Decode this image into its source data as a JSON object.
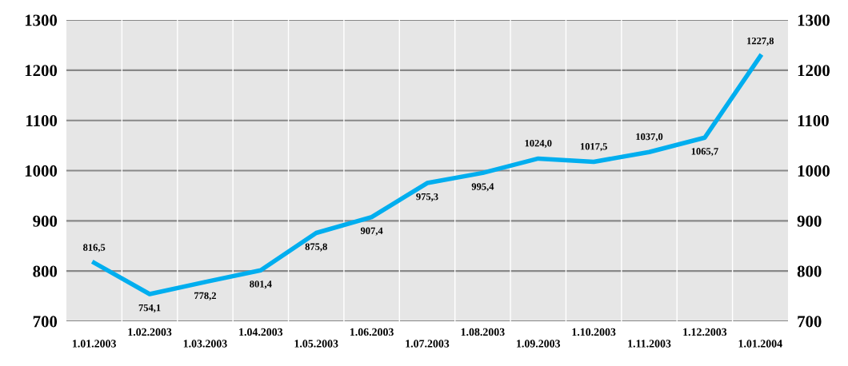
{
  "chart_data": {
    "type": "line",
    "categories": [
      "1.01.2003",
      "1.02.2003",
      "1.03.2003",
      "1.04.2003",
      "1.05.2003",
      "1.06.2003",
      "1.07.2003",
      "1.08.2003",
      "1.09.2003",
      "1.10.2003",
      "1.11.2003",
      "1.12.2003",
      "1.01.2004"
    ],
    "series": [
      {
        "color": "#00aeef",
        "values": [
          816.5,
          754.1,
          778.2,
          801.4,
          875.8,
          907.4,
          975.3,
          995.4,
          1024.0,
          1017.5,
          1037.0,
          1065.7,
          1227.8
        ],
        "value_labels": [
          "816,5",
          "754,1",
          "778,2",
          "801,4",
          "875,8",
          "907,4",
          "975,3",
          "995,4",
          "1024,0",
          "1017,5",
          "1037,0",
          "1065,7",
          "1227,8"
        ]
      }
    ],
    "ylim": [
      700,
      1300
    ],
    "yticks": [
      700,
      800,
      900,
      1000,
      1100,
      1200,
      1300
    ],
    "y2lim": [
      700,
      1300
    ],
    "y2ticks": [
      700,
      800,
      900,
      1000,
      1100,
      1200,
      1300
    ],
    "grid": true,
    "legend": false,
    "marker": "none",
    "line_style": "solid"
  }
}
